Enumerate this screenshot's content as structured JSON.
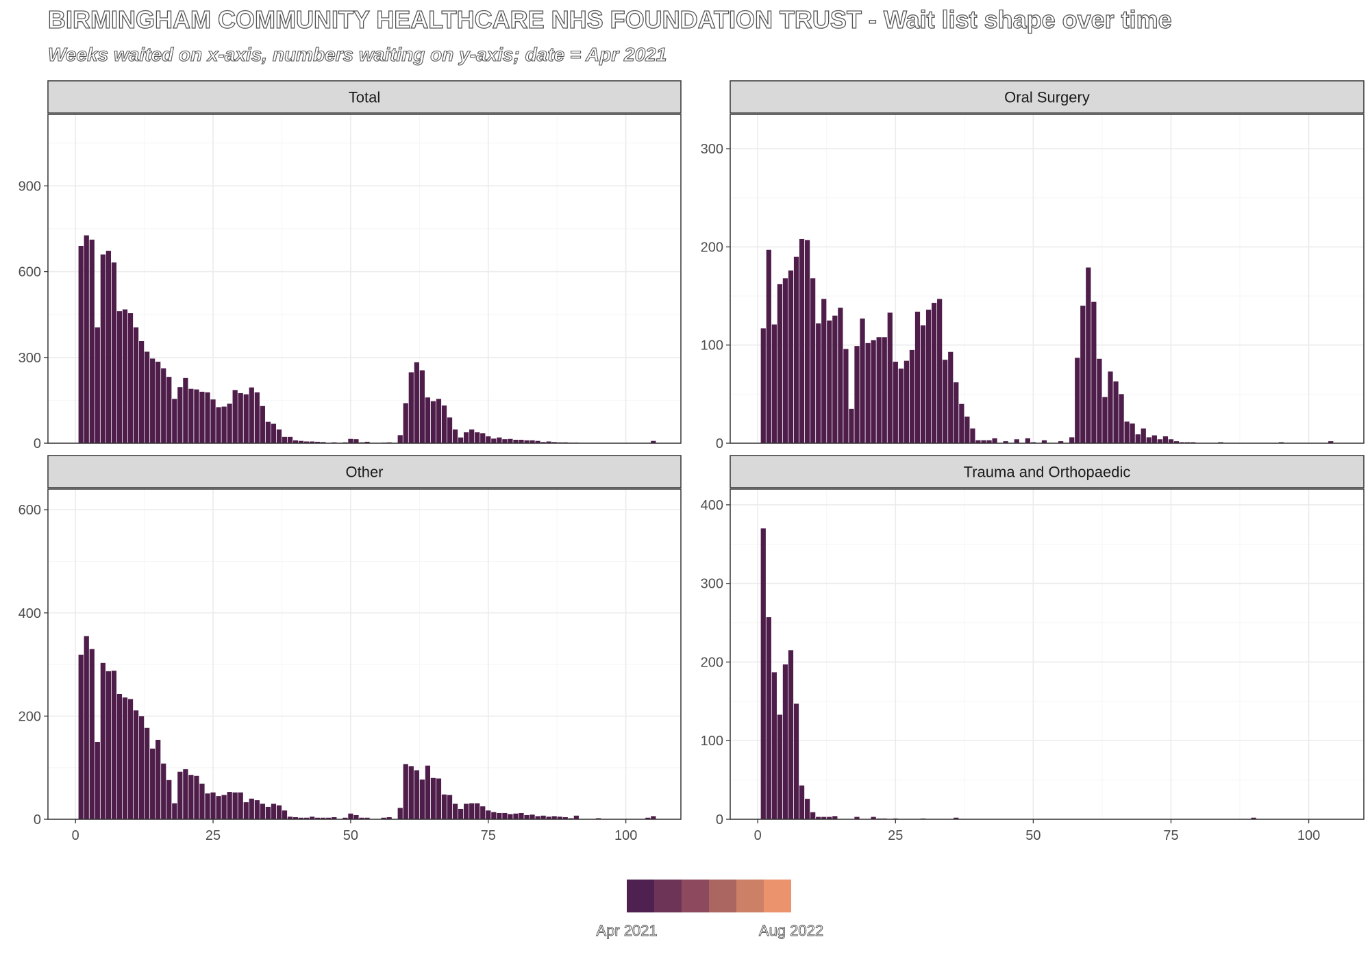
{
  "header": {
    "title": "BIRMINGHAM COMMUNITY HEALTHCARE NHS FOUNDATION TRUST - Wait list shape over time",
    "subtitle": "Weeks waited on x-axis, numbers waiting on y-axis; date = Apr 2021"
  },
  "colors": {
    "bar": "#4e1d4a",
    "strip_bg": "#d9d9d9",
    "grid_major": "#ebebeb",
    "grid_minor": "#f5f5f5",
    "legend_swatches": [
      "#4f2150",
      "#6d3458",
      "#8d4a5e",
      "#ac6661",
      "#cc8066",
      "#ea936c"
    ]
  },
  "legend": {
    "start_label": "Apr 2021",
    "end_label": "Aug 2022"
  },
  "chart_data": [
    {
      "type": "bar",
      "title": "Total",
      "xlabel": "",
      "ylabel": "",
      "xlim": [
        -5,
        110
      ],
      "ylim": [
        0,
        1150
      ],
      "xticks": [
        0,
        25,
        50,
        75,
        100
      ],
      "yticks": [
        0,
        300,
        600,
        900
      ],
      "grid": true,
      "x": [
        1,
        2,
        3,
        4,
        5,
        6,
        7,
        8,
        9,
        10,
        11,
        12,
        13,
        14,
        15,
        16,
        17,
        18,
        19,
        20,
        21,
        22,
        23,
        24,
        25,
        26,
        27,
        28,
        29,
        30,
        31,
        32,
        33,
        34,
        35,
        36,
        37,
        38,
        39,
        40,
        41,
        42,
        43,
        44,
        45,
        46,
        47,
        48,
        49,
        50,
        51,
        52,
        53,
        54,
        55,
        56,
        57,
        58,
        59,
        60,
        61,
        62,
        63,
        64,
        65,
        66,
        67,
        68,
        69,
        70,
        71,
        72,
        73,
        74,
        75,
        76,
        77,
        78,
        79,
        80,
        81,
        82,
        83,
        84,
        85,
        86,
        87,
        88,
        89,
        90,
        91,
        92,
        93,
        94,
        95,
        96,
        97,
        98,
        99,
        100,
        101,
        102,
        103,
        104,
        105
      ],
      "values": [
        690,
        727,
        712,
        405,
        660,
        673,
        632,
        462,
        468,
        455,
        405,
        357,
        320,
        296,
        285,
        262,
        232,
        155,
        196,
        228,
        190,
        188,
        180,
        178,
        153,
        126,
        128,
        138,
        186,
        175,
        171,
        195,
        178,
        130,
        75,
        68,
        48,
        22,
        22,
        10,
        8,
        6,
        6,
        5,
        4,
        0,
        3,
        0,
        3,
        15,
        14,
        3,
        5,
        0,
        0,
        2,
        3,
        0,
        28,
        140,
        248,
        283,
        255,
        160,
        147,
        155,
        132,
        90,
        48,
        20,
        38,
        48,
        38,
        35,
        24,
        16,
        20,
        14,
        15,
        12,
        12,
        10,
        10,
        8,
        4,
        6,
        4,
        3,
        3,
        2,
        2,
        0,
        0,
        0,
        0,
        0,
        0,
        0,
        0,
        0,
        0,
        0,
        0,
        0,
        8
      ]
    },
    {
      "type": "bar",
      "title": "Oral Surgery",
      "xlabel": "",
      "ylabel": "",
      "xlim": [
        -5,
        110
      ],
      "ylim": [
        0,
        335
      ],
      "xticks": [
        0,
        25,
        50,
        75,
        100
      ],
      "yticks": [
        0,
        100,
        200,
        300
      ],
      "grid": true,
      "x": [
        1,
        2,
        3,
        4,
        5,
        6,
        7,
        8,
        9,
        10,
        11,
        12,
        13,
        14,
        15,
        16,
        17,
        18,
        19,
        20,
        21,
        22,
        23,
        24,
        25,
        26,
        27,
        28,
        29,
        30,
        31,
        32,
        33,
        34,
        35,
        36,
        37,
        38,
        39,
        40,
        41,
        42,
        43,
        44,
        45,
        46,
        47,
        48,
        49,
        50,
        51,
        52,
        53,
        54,
        55,
        56,
        57,
        58,
        59,
        60,
        61,
        62,
        63,
        64,
        65,
        66,
        67,
        68,
        69,
        70,
        71,
        72,
        73,
        74,
        75,
        76,
        77,
        78,
        79,
        80,
        81,
        82,
        83,
        84,
        85,
        86,
        87,
        88,
        89,
        90,
        91,
        92,
        93,
        94,
        95,
        96,
        97,
        98,
        99,
        100,
        101,
        102,
        103,
        104,
        105
      ],
      "values": [
        117,
        197,
        121,
        162,
        168,
        176,
        190,
        208,
        207,
        168,
        122,
        147,
        125,
        130,
        138,
        96,
        35,
        99,
        127,
        102,
        105,
        108,
        108,
        133,
        83,
        76,
        84,
        95,
        134,
        120,
        136,
        143,
        147,
        85,
        93,
        62,
        40,
        27,
        15,
        3,
        3,
        3,
        5,
        0,
        2,
        0,
        4,
        0,
        5,
        1,
        0,
        3,
        0,
        0,
        2,
        0,
        6,
        87,
        140,
        179,
        144,
        86,
        47,
        73,
        63,
        50,
        22,
        20,
        9,
        15,
        6,
        8,
        4,
        7,
        4,
        2,
        1,
        1,
        1,
        0,
        0,
        0,
        0,
        1,
        0,
        0,
        0,
        0,
        0,
        0,
        0,
        0,
        0,
        0,
        1,
        0,
        0,
        0,
        0,
        0,
        0,
        0,
        0,
        2,
        0
      ]
    },
    {
      "type": "bar",
      "title": "Other",
      "xlabel": "",
      "ylabel": "",
      "xlim": [
        -5,
        110
      ],
      "ylim": [
        0,
        640
      ],
      "xticks": [
        0,
        25,
        50,
        75,
        100
      ],
      "yticks": [
        0,
        200,
        400,
        600
      ],
      "grid": true,
      "x": [
        1,
        2,
        3,
        4,
        5,
        6,
        7,
        8,
        9,
        10,
        11,
        12,
        13,
        14,
        15,
        16,
        17,
        18,
        19,
        20,
        21,
        22,
        23,
        24,
        25,
        26,
        27,
        28,
        29,
        30,
        31,
        32,
        33,
        34,
        35,
        36,
        37,
        38,
        39,
        40,
        41,
        42,
        43,
        44,
        45,
        46,
        47,
        48,
        49,
        50,
        51,
        52,
        53,
        54,
        55,
        56,
        57,
        58,
        59,
        60,
        61,
        62,
        63,
        64,
        65,
        66,
        67,
        68,
        69,
        70,
        71,
        72,
        73,
        74,
        75,
        76,
        77,
        78,
        79,
        80,
        81,
        82,
        83,
        84,
        85,
        86,
        87,
        88,
        89,
        90,
        91,
        92,
        93,
        94,
        95,
        96,
        97,
        98,
        99,
        100,
        101,
        102,
        103,
        104,
        105
      ],
      "values": [
        319,
        355,
        330,
        150,
        303,
        287,
        288,
        243,
        236,
        233,
        211,
        200,
        177,
        137,
        154,
        108,
        76,
        31,
        92,
        97,
        86,
        84,
        69,
        50,
        52,
        45,
        47,
        53,
        52,
        52,
        33,
        40,
        37,
        30,
        24,
        30,
        27,
        17,
        5,
        4,
        3,
        3,
        5,
        3,
        3,
        3,
        4,
        0,
        3,
        11,
        8,
        3,
        3,
        0,
        0,
        3,
        4,
        0,
        22,
        107,
        103,
        95,
        77,
        104,
        80,
        79,
        48,
        47,
        30,
        20,
        30,
        31,
        31,
        25,
        17,
        14,
        12,
        12,
        10,
        11,
        12,
        8,
        9,
        6,
        7,
        5,
        6,
        5,
        4,
        2,
        7,
        0,
        0,
        0,
        2,
        0,
        0,
        0,
        0,
        0,
        0,
        0,
        0,
        3,
        6
      ]
    },
    {
      "type": "bar",
      "title": "Trauma and Orthopaedic",
      "xlabel": "",
      "ylabel": "",
      "xlim": [
        -5,
        110
      ],
      "ylim": [
        0,
        420
      ],
      "xticks": [
        0,
        25,
        50,
        75,
        100
      ],
      "yticks": [
        0,
        100,
        200,
        300,
        400
      ],
      "grid": true,
      "x": [
        1,
        2,
        3,
        4,
        5,
        6,
        7,
        8,
        9,
        10,
        11,
        12,
        13,
        14,
        15,
        16,
        17,
        18,
        19,
        20,
        21,
        22,
        23,
        24,
        25,
        26,
        27,
        28,
        29,
        30,
        31,
        32,
        33,
        34,
        35,
        36,
        37,
        38,
        39,
        40,
        41,
        42,
        43,
        44,
        45,
        46,
        47,
        48,
        49,
        50,
        51,
        52,
        53,
        54,
        55,
        56,
        57,
        58,
        59,
        60,
        61,
        62,
        63,
        64,
        65,
        66,
        67,
        68,
        69,
        70,
        71,
        72,
        73,
        74,
        75,
        76,
        77,
        78,
        79,
        80,
        81,
        82,
        83,
        84,
        85,
        86,
        87,
        88,
        89,
        90
      ],
      "values": [
        370,
        257,
        187,
        133,
        197,
        215,
        147,
        43,
        26,
        9,
        3,
        3,
        3,
        4,
        0,
        0,
        0,
        3,
        0,
        0,
        3,
        1,
        1,
        0,
        1,
        0,
        0,
        0,
        0,
        1,
        0,
        0,
        0,
        0,
        0,
        2,
        0,
        0,
        0,
        0,
        0,
        0,
        0,
        0,
        0,
        0,
        0,
        0,
        0,
        0,
        0,
        0,
        0,
        0,
        0,
        0,
        0,
        0,
        0,
        0,
        0,
        0,
        0,
        0,
        0,
        0,
        0,
        0,
        0,
        0,
        0,
        0,
        0,
        0,
        0,
        0,
        0,
        0,
        0,
        0,
        0,
        0,
        0,
        0,
        0,
        0,
        0,
        0,
        0,
        2
      ]
    }
  ]
}
